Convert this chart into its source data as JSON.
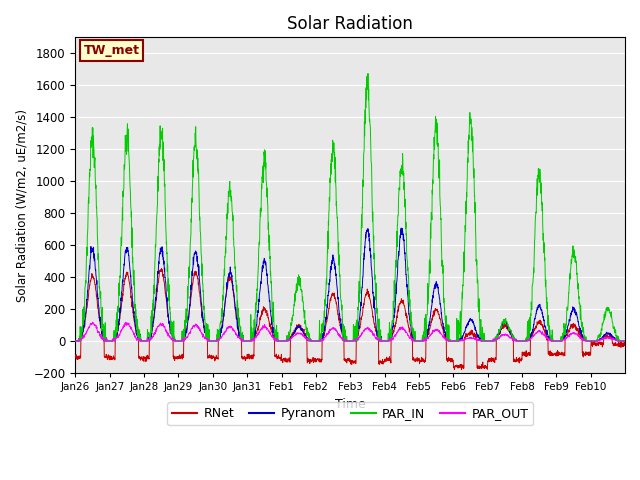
{
  "title": "Solar Radiation",
  "xlabel": "Time",
  "ylabel": "Solar Radiation (W/m2, uE/m2/s)",
  "ylim": [
    -200,
    1900
  ],
  "yticks": [
    -200,
    0,
    200,
    400,
    600,
    800,
    1000,
    1200,
    1400,
    1600,
    1800
  ],
  "station_label": "TW_met",
  "colors": {
    "RNet": "#cc0000",
    "Pyranom": "#0000cc",
    "PAR_IN": "#00cc00",
    "PAR_OUT": "#ff00ff"
  },
  "background_color": "#e8e8e8",
  "xtick_labels": [
    "Jan 26",
    "Jan 27",
    "Jan 28",
    "Jan 29",
    "Jan 30",
    "Jan 31",
    "Feb 1",
    "Feb 2",
    "Feb 3",
    "Feb 4",
    "Feb 5",
    "Feb 6",
    "Feb 7",
    "Feb 8",
    "Feb 9",
    "Feb 10"
  ],
  "day_peaks_PAR_IN": [
    1270,
    1290,
    1290,
    1260,
    950,
    1140,
    380,
    1205,
    1610,
    1115,
    1355,
    1380,
    125,
    1050,
    560,
    200
  ],
  "day_peaks_Pyranom": [
    570,
    580,
    575,
    555,
    430,
    500,
    90,
    510,
    700,
    700,
    355,
    135,
    120,
    220,
    200,
    50
  ],
  "day_peaks_RNet": [
    410,
    420,
    445,
    430,
    395,
    200,
    90,
    295,
    305,
    255,
    195,
    50,
    100,
    115,
    100,
    30
  ],
  "day_peaks_PAR_OUT": [
    110,
    110,
    105,
    100,
    90,
    90,
    50,
    80,
    80,
    80,
    70,
    20,
    40,
    60,
    50,
    20
  ],
  "rnet_night": [
    -100,
    -110,
    -105,
    -100,
    -105,
    -100,
    -120,
    -120,
    -130,
    -115,
    -120,
    -160,
    -120,
    -80,
    -80,
    -20
  ]
}
